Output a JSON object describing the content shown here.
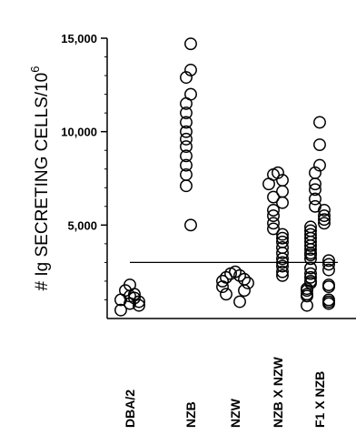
{
  "chart_data": {
    "type": "scatter",
    "title": "",
    "xlabel": "",
    "ylabel": "# Ig SECRETING CELLS/10",
    "ylabel_superscript": "6",
    "ylim": [
      0,
      15000
    ],
    "yticks": [
      {
        "value": 5000,
        "label": "5,000"
      },
      {
        "value": 10000,
        "label": "10,000"
      },
      {
        "value": 15000,
        "label": "15,000"
      }
    ],
    "minor_tick_step": 1000,
    "reference_line": 3000,
    "grid": false,
    "categories": [
      "DBA/2",
      "NZB",
      "NZW",
      "NZB X NZW",
      "F1 X NZB"
    ],
    "series": [
      {
        "values": [
          {
            "x": "DBA/2",
            "y": [
              1800,
              1500,
              1300,
              1100,
              1000,
              900,
              700,
              450,
              1200,
              800
            ]
          },
          {
            "x": "NZB",
            "y": [
              14700,
              13300,
              12900,
              12000,
              11500,
              11000,
              10500,
              10000,
              9600,
              9200,
              8700,
              8200,
              7700,
              7100,
              5000
            ]
          },
          {
            "x": "NZW",
            "y": [
              2500,
              2400,
              2300,
              2200,
              2100,
              2000,
              1900,
              1700,
              1500,
              1300,
              900
            ]
          },
          {
            "x": "NZB X NZW",
            "y": [
              7800,
              7700,
              7400,
              7200,
              6800,
              6500,
              6200,
              5800,
              5500,
              5100,
              4800,
              4500,
              4300,
              4100,
              3800,
              3500,
              3200,
              3000,
              2800,
              2500,
              2300
            ]
          },
          {
            "x": "F1 X NZB",
            "y": [
              10500,
              9300,
              8200,
              7800,
              7200,
              6900,
              6400,
              6000,
              5800,
              5500,
              5300,
              5100,
              4900,
              4700,
              4500,
              4300,
              4100,
              3900,
              3700,
              3500,
              3400,
              3200,
              3100,
              2900,
              2700,
              2600,
              2400,
              2200,
              2000,
              1900,
              1800,
              1700,
              1600,
              1500,
              1300,
              1200,
              1000,
              900,
              800,
              700
            ]
          }
        ]
      }
    ]
  }
}
